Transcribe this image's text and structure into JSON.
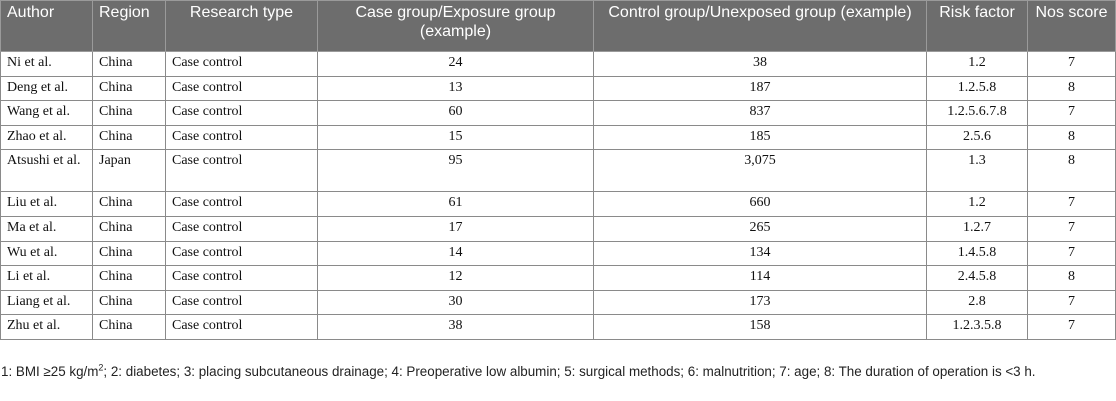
{
  "table": {
    "headers": [
      "Author",
      "Region",
      "Research type",
      "Case group/Exposure group (example)",
      "Control group/Unexposed group (example)",
      "Risk factor",
      "Nos score"
    ],
    "rows": [
      [
        "Ni et al.",
        "China",
        "Case control",
        "24",
        "38",
        "1.2",
        "7"
      ],
      [
        "Deng et al.",
        "China",
        "Case control",
        "13",
        "187",
        "1.2.5.8",
        "8"
      ],
      [
        "Wang et al.",
        "China",
        "Case control",
        "60",
        "837",
        "1.2.5.6.7.8",
        "7"
      ],
      [
        "Zhao et al.",
        "China",
        "Case control",
        "15",
        "185",
        "2.5.6",
        "8"
      ],
      [
        "Atsushi et al.",
        "Japan",
        "Case control",
        "95",
        "3,075",
        "1.3",
        "8"
      ],
      [
        "Liu et al.",
        "China",
        "Case control",
        "61",
        "660",
        "1.2",
        "7"
      ],
      [
        "Ma et al.",
        "China",
        "Case control",
        "17",
        "265",
        "1.2.7",
        "7"
      ],
      [
        "Wu et al.",
        "China",
        "Case control",
        "14",
        "134",
        "1.4.5.8",
        "7"
      ],
      [
        "Li et al.",
        "China",
        "Case control",
        "12",
        "114",
        "2.4.5.8",
        "8"
      ],
      [
        "Liang et al.",
        "China",
        "Case control",
        "30",
        "173",
        "2.8",
        "7"
      ],
      [
        "Zhu et al.",
        "China",
        "Case control",
        "38",
        "158",
        "1.2.3.5.8",
        "7"
      ]
    ]
  },
  "footnote": {
    "part1": "1: BMI ≥25 kg/m",
    "sup": "2",
    "part2": "; 2: diabetes; 3: placing subcutaneous drainage; 4: Preoperative low albumin; 5: surgical methods; 6: malnutrition; 7: age; 8: The duration of operation is <3 h."
  },
  "colors": {
    "header_bg": "#6d6d6d",
    "header_text": "#ffffff",
    "border": "#8a8a8a"
  }
}
